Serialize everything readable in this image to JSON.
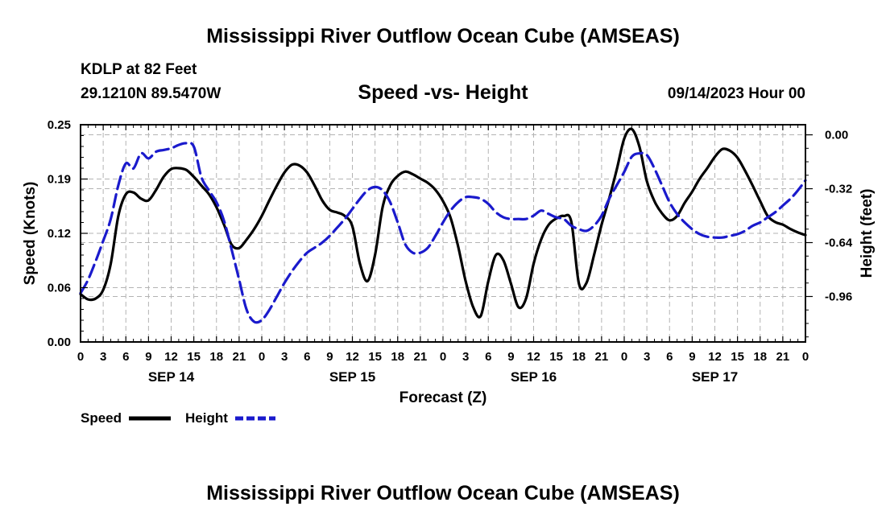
{
  "header": {
    "title": "Mississippi River Outflow Ocean Cube (AMSEAS)",
    "station": "KDLP at 82 Feet",
    "location": "29.1210N  89.5470W",
    "subtitle": "Speed -vs- Height",
    "datetime": "09/14/2023 Hour 00"
  },
  "footer": {
    "title": "Mississippi River Outflow Ocean Cube (AMSEAS)"
  },
  "chart_data": {
    "type": "line",
    "title": "Speed -vs- Height",
    "xlabel": "Forecast (Z)",
    "ylabel": "Speed (Knots)",
    "y2label": "Height (feet)",
    "xlim": [
      0,
      96
    ],
    "ylim": [
      0,
      0.25
    ],
    "y2lim": [
      -1.23,
      0.06
    ],
    "y_ticks": [
      "0.00",
      "0.06",
      "0.12",
      "0.19",
      "0.25"
    ],
    "y_tick_values": [
      0,
      0.0625,
      0.125,
      0.1875,
      0.25
    ],
    "y2_ticks": [
      "0.00",
      "-0.32",
      "-0.64",
      "-0.96"
    ],
    "y2_tick_values": [
      0,
      -0.32,
      -0.64,
      -0.96
    ],
    "x_tick_labels": [
      "0",
      "3",
      "6",
      "9",
      "12",
      "15",
      "18",
      "21",
      "0",
      "3",
      "6",
      "9",
      "12",
      "15",
      "18",
      "21",
      "0",
      "3",
      "6",
      "9",
      "12",
      "15",
      "18",
      "21",
      "0",
      "3",
      "6",
      "9",
      "12",
      "15",
      "18",
      "21",
      "0"
    ],
    "day_labels": [
      {
        "label": "SEP 14",
        "hour": 12
      },
      {
        "label": "SEP 15",
        "hour": 36
      },
      {
        "label": "SEP 16",
        "hour": 60
      },
      {
        "label": "SEP 17",
        "hour": 84
      }
    ],
    "grid": true,
    "legend": "bottom-left",
    "series": [
      {
        "name": "Speed",
        "axis": "left",
        "color": "#000000",
        "style": "solid",
        "points": [
          [
            0,
            0.055
          ],
          [
            1,
            0.049
          ],
          [
            2,
            0.05
          ],
          [
            3,
            0.06
          ],
          [
            4,
            0.09
          ],
          [
            5,
            0.145
          ],
          [
            6,
            0.17
          ],
          [
            7,
            0.172
          ],
          [
            8,
            0.165
          ],
          [
            9,
            0.163
          ],
          [
            10,
            0.175
          ],
          [
            11,
            0.19
          ],
          [
            12,
            0.199
          ],
          [
            13,
            0.2
          ],
          [
            14,
            0.198
          ],
          [
            15,
            0.19
          ],
          [
            16,
            0.18
          ],
          [
            17,
            0.17
          ],
          [
            18,
            0.155
          ],
          [
            19,
            0.135
          ],
          [
            20,
            0.112
          ],
          [
            21,
            0.108
          ],
          [
            22,
            0.118
          ],
          [
            23,
            0.13
          ],
          [
            24,
            0.145
          ],
          [
            25,
            0.163
          ],
          [
            26,
            0.18
          ],
          [
            27,
            0.195
          ],
          [
            28,
            0.204
          ],
          [
            29,
            0.203
          ],
          [
            30,
            0.195
          ],
          [
            31,
            0.18
          ],
          [
            32,
            0.163
          ],
          [
            33,
            0.152
          ],
          [
            34,
            0.149
          ],
          [
            35,
            0.145
          ],
          [
            36,
            0.133
          ],
          [
            37,
            0.09
          ],
          [
            38,
            0.07
          ],
          [
            39,
            0.1
          ],
          [
            40,
            0.155
          ],
          [
            41,
            0.18
          ],
          [
            42,
            0.191
          ],
          [
            43,
            0.196
          ],
          [
            44,
            0.193
          ],
          [
            45,
            0.188
          ],
          [
            46,
            0.183
          ],
          [
            47,
            0.175
          ],
          [
            48,
            0.162
          ],
          [
            49,
            0.143
          ],
          [
            50,
            0.11
          ],
          [
            51,
            0.07
          ],
          [
            52,
            0.04
          ],
          [
            53,
            0.03
          ],
          [
            54,
            0.07
          ],
          [
            55,
            0.1
          ],
          [
            56,
            0.094
          ],
          [
            57,
            0.067
          ],
          [
            58,
            0.04
          ],
          [
            59,
            0.05
          ],
          [
            60,
            0.09
          ],
          [
            61,
            0.118
          ],
          [
            62,
            0.135
          ],
          [
            63,
            0.142
          ],
          [
            64,
            0.145
          ],
          [
            65,
            0.138
          ],
          [
            66,
            0.067
          ],
          [
            67,
            0.068
          ],
          [
            68,
            0.1
          ],
          [
            69,
            0.135
          ],
          [
            70,
            0.165
          ],
          [
            71,
            0.198
          ],
          [
            72,
            0.234
          ],
          [
            73,
            0.245
          ],
          [
            74,
            0.225
          ],
          [
            75,
            0.185
          ],
          [
            76,
            0.162
          ],
          [
            77,
            0.148
          ],
          [
            78,
            0.14
          ],
          [
            79,
            0.145
          ],
          [
            80,
            0.16
          ],
          [
            81,
            0.173
          ],
          [
            82,
            0.188
          ],
          [
            83,
            0.2
          ],
          [
            84,
            0.213
          ],
          [
            85,
            0.222
          ],
          [
            86,
            0.22
          ],
          [
            87,
            0.212
          ],
          [
            88,
            0.197
          ],
          [
            89,
            0.18
          ],
          [
            90,
            0.162
          ],
          [
            91,
            0.145
          ],
          [
            92,
            0.138
          ],
          [
            93,
            0.135
          ],
          [
            94,
            0.13
          ],
          [
            95,
            0.126
          ],
          [
            96,
            0.123
          ]
        ]
      },
      {
        "name": "Height",
        "axis": "right",
        "color": "#1a1acc",
        "style": "dashed",
        "points": [
          [
            0,
            -0.94
          ],
          [
            1,
            -0.86
          ],
          [
            2,
            -0.75
          ],
          [
            3,
            -0.63
          ],
          [
            4,
            -0.5
          ],
          [
            5,
            -0.3
          ],
          [
            6,
            -0.17
          ],
          [
            7,
            -0.2
          ],
          [
            8,
            -0.11
          ],
          [
            9,
            -0.14
          ],
          [
            10,
            -0.1
          ],
          [
            11,
            -0.09
          ],
          [
            12,
            -0.08
          ],
          [
            13,
            -0.06
          ],
          [
            14,
            -0.05
          ],
          [
            15,
            -0.07
          ],
          [
            16,
            -0.25
          ],
          [
            17,
            -0.33
          ],
          [
            18,
            -0.4
          ],
          [
            19,
            -0.51
          ],
          [
            20,
            -0.68
          ],
          [
            21,
            -0.86
          ],
          [
            22,
            -1.04
          ],
          [
            23,
            -1.11
          ],
          [
            24,
            -1.1
          ],
          [
            25,
            -1.04
          ],
          [
            26,
            -0.96
          ],
          [
            27,
            -0.88
          ],
          [
            28,
            -0.81
          ],
          [
            29,
            -0.75
          ],
          [
            30,
            -0.7
          ],
          [
            31,
            -0.67
          ],
          [
            32,
            -0.64
          ],
          [
            33,
            -0.6
          ],
          [
            34,
            -0.55
          ],
          [
            35,
            -0.5
          ],
          [
            36,
            -0.44
          ],
          [
            37,
            -0.38
          ],
          [
            38,
            -0.33
          ],
          [
            39,
            -0.31
          ],
          [
            40,
            -0.33
          ],
          [
            41,
            -0.4
          ],
          [
            42,
            -0.52
          ],
          [
            43,
            -0.65
          ],
          [
            44,
            -0.7
          ],
          [
            45,
            -0.7
          ],
          [
            46,
            -0.67
          ],
          [
            47,
            -0.6
          ],
          [
            48,
            -0.52
          ],
          [
            49,
            -0.45
          ],
          [
            50,
            -0.4
          ],
          [
            51,
            -0.37
          ],
          [
            52,
            -0.37
          ],
          [
            53,
            -0.38
          ],
          [
            54,
            -0.41
          ],
          [
            55,
            -0.46
          ],
          [
            56,
            -0.49
          ],
          [
            57,
            -0.5
          ],
          [
            58,
            -0.5
          ],
          [
            59,
            -0.5
          ],
          [
            60,
            -0.48
          ],
          [
            61,
            -0.45
          ],
          [
            62,
            -0.47
          ],
          [
            63,
            -0.49
          ],
          [
            64,
            -0.5
          ],
          [
            65,
            -0.54
          ],
          [
            66,
            -0.56
          ],
          [
            67,
            -0.57
          ],
          [
            68,
            -0.54
          ],
          [
            69,
            -0.48
          ],
          [
            70,
            -0.38
          ],
          [
            71,
            -0.3
          ],
          [
            72,
            -0.22
          ],
          [
            73,
            -0.13
          ],
          [
            74,
            -0.11
          ],
          [
            75,
            -0.12
          ],
          [
            76,
            -0.2
          ],
          [
            77,
            -0.3
          ],
          [
            78,
            -0.4
          ],
          [
            79,
            -0.47
          ],
          [
            80,
            -0.52
          ],
          [
            81,
            -0.56
          ],
          [
            82,
            -0.59
          ],
          [
            83,
            -0.605
          ],
          [
            84,
            -0.61
          ],
          [
            85,
            -0.61
          ],
          [
            86,
            -0.6
          ],
          [
            87,
            -0.59
          ],
          [
            88,
            -0.57
          ],
          [
            89,
            -0.54
          ],
          [
            90,
            -0.52
          ],
          [
            91,
            -0.49
          ],
          [
            92,
            -0.46
          ],
          [
            93,
            -0.42
          ],
          [
            94,
            -0.38
          ],
          [
            95,
            -0.33
          ],
          [
            96,
            -0.27
          ]
        ]
      }
    ]
  }
}
